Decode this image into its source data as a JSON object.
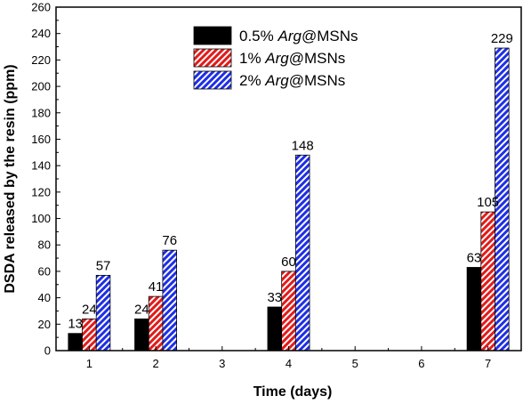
{
  "chart_data": {
    "type": "bar",
    "xlabel": "Time (days)",
    "ylabel": "DSDA released by the resin (ppm)",
    "ylim": [
      0,
      260
    ],
    "yticks": [
      "0",
      "20",
      "40",
      "60",
      "80",
      "100",
      "120",
      "140",
      "160",
      "180",
      "200",
      "220",
      "240",
      "260"
    ],
    "xlim": [
      0.5,
      7.5
    ],
    "xticks": [
      "1",
      "2",
      "3",
      "4",
      "5",
      "6",
      "7"
    ],
    "grid": false,
    "legend_position": "top-center",
    "categories": [
      "1",
      "2",
      "4",
      "7"
    ],
    "series": [
      {
        "name_prefix": "0.5% ",
        "name_italic": "Arg",
        "name_suffix": "@MSNs",
        "pattern": "solid",
        "color": "#000000",
        "values": [
          13,
          24,
          33,
          63
        ],
        "labels": [
          "13",
          "24",
          "33",
          "63"
        ]
      },
      {
        "name_prefix": "1% ",
        "name_italic": "Arg",
        "name_suffix": "@MSNs",
        "pattern": "hatch",
        "color": "#e11b1b",
        "values": [
          24,
          41,
          60,
          105
        ],
        "labels": [
          "24",
          "41",
          "60",
          "105"
        ]
      },
      {
        "name_prefix": "2% ",
        "name_italic": "Arg",
        "name_suffix": "@MSNs",
        "pattern": "hatch",
        "color": "#1e2fe6",
        "values": [
          57,
          76,
          148,
          229
        ],
        "labels": [
          "57",
          "76",
          "148",
          "229"
        ]
      }
    ]
  }
}
